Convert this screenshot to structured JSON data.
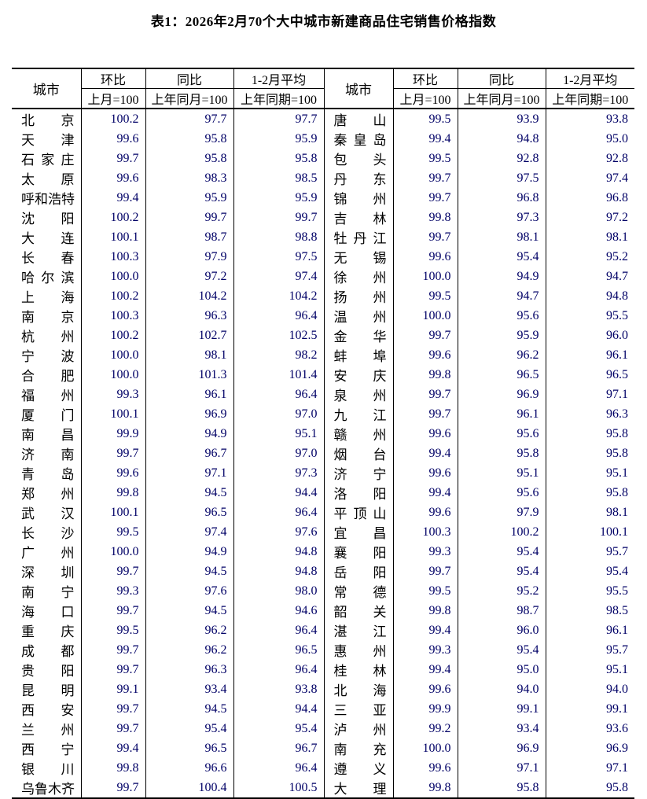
{
  "title": "表1：2026年2月70个大中城市新建商品住宅销售价格指数",
  "colors": {
    "page_background": "#ffffff",
    "border": "#000000",
    "heading_text": "#000000",
    "number_text": "#000066"
  },
  "header": {
    "city_label": "城市",
    "groups": [
      {
        "label": "环比",
        "sub": "上月=100"
      },
      {
        "label": "同比",
        "sub": "上年同月=100"
      },
      {
        "label": "1-2月平均",
        "sub": "上年同期=100"
      }
    ]
  },
  "left_rows": [
    {
      "city": "北京",
      "mom": "100.2",
      "yoy": "97.7",
      "avg": "97.7"
    },
    {
      "city": "天津",
      "mom": "99.6",
      "yoy": "95.8",
      "avg": "95.9"
    },
    {
      "city": "石家庄",
      "mom": "99.7",
      "yoy": "95.8",
      "avg": "95.8"
    },
    {
      "city": "太原",
      "mom": "99.6",
      "yoy": "98.3",
      "avg": "98.5"
    },
    {
      "city": "呼和浩特",
      "mom": "99.4",
      "yoy": "95.9",
      "avg": "95.9"
    },
    {
      "city": "沈阳",
      "mom": "100.2",
      "yoy": "99.7",
      "avg": "99.7"
    },
    {
      "city": "大连",
      "mom": "100.1",
      "yoy": "98.7",
      "avg": "98.8"
    },
    {
      "city": "长春",
      "mom": "100.3",
      "yoy": "97.9",
      "avg": "97.5"
    },
    {
      "city": "哈尔滨",
      "mom": "100.0",
      "yoy": "97.2",
      "avg": "97.4"
    },
    {
      "city": "上海",
      "mom": "100.2",
      "yoy": "104.2",
      "avg": "104.2"
    },
    {
      "city": "南京",
      "mom": "100.3",
      "yoy": "96.3",
      "avg": "96.4"
    },
    {
      "city": "杭州",
      "mom": "100.2",
      "yoy": "102.7",
      "avg": "102.5"
    },
    {
      "city": "宁波",
      "mom": "100.0",
      "yoy": "98.1",
      "avg": "98.2"
    },
    {
      "city": "合肥",
      "mom": "100.0",
      "yoy": "101.3",
      "avg": "101.4"
    },
    {
      "city": "福州",
      "mom": "99.3",
      "yoy": "96.1",
      "avg": "96.4"
    },
    {
      "city": "厦门",
      "mom": "100.1",
      "yoy": "96.9",
      "avg": "97.0"
    },
    {
      "city": "南昌",
      "mom": "99.9",
      "yoy": "94.9",
      "avg": "95.1"
    },
    {
      "city": "济南",
      "mom": "99.7",
      "yoy": "96.7",
      "avg": "97.0"
    },
    {
      "city": "青岛",
      "mom": "99.6",
      "yoy": "97.1",
      "avg": "97.3"
    },
    {
      "city": "郑州",
      "mom": "99.8",
      "yoy": "94.5",
      "avg": "94.4"
    },
    {
      "city": "武汉",
      "mom": "100.1",
      "yoy": "96.5",
      "avg": "96.4"
    },
    {
      "city": "长沙",
      "mom": "99.5",
      "yoy": "97.4",
      "avg": "97.6"
    },
    {
      "city": "广州",
      "mom": "100.0",
      "yoy": "94.9",
      "avg": "94.8"
    },
    {
      "city": "深圳",
      "mom": "99.7",
      "yoy": "94.5",
      "avg": "94.8"
    },
    {
      "city": "南宁",
      "mom": "99.3",
      "yoy": "97.6",
      "avg": "98.0"
    },
    {
      "city": "海口",
      "mom": "99.7",
      "yoy": "94.5",
      "avg": "94.6"
    },
    {
      "city": "重庆",
      "mom": "99.5",
      "yoy": "96.2",
      "avg": "96.4"
    },
    {
      "city": "成都",
      "mom": "99.7",
      "yoy": "96.2",
      "avg": "96.5"
    },
    {
      "city": "贵阳",
      "mom": "99.7",
      "yoy": "96.3",
      "avg": "96.4"
    },
    {
      "city": "昆明",
      "mom": "99.1",
      "yoy": "93.4",
      "avg": "93.8"
    },
    {
      "city": "西安",
      "mom": "99.7",
      "yoy": "94.5",
      "avg": "94.4"
    },
    {
      "city": "兰州",
      "mom": "99.7",
      "yoy": "95.4",
      "avg": "95.4"
    },
    {
      "city": "西宁",
      "mom": "99.4",
      "yoy": "96.5",
      "avg": "96.7"
    },
    {
      "city": "银川",
      "mom": "99.8",
      "yoy": "96.6",
      "avg": "96.4"
    },
    {
      "city": "乌鲁木齐",
      "mom": "99.7",
      "yoy": "100.4",
      "avg": "100.5"
    }
  ],
  "right_rows": [
    {
      "city": "唐山",
      "mom": "99.5",
      "yoy": "93.9",
      "avg": "93.8"
    },
    {
      "city": "秦皇岛",
      "mom": "99.4",
      "yoy": "94.8",
      "avg": "95.0"
    },
    {
      "city": "包头",
      "mom": "99.5",
      "yoy": "92.8",
      "avg": "92.8"
    },
    {
      "city": "丹东",
      "mom": "99.7",
      "yoy": "97.5",
      "avg": "97.4"
    },
    {
      "city": "锦州",
      "mom": "99.7",
      "yoy": "96.8",
      "avg": "96.8"
    },
    {
      "city": "吉林",
      "mom": "99.8",
      "yoy": "97.3",
      "avg": "97.2"
    },
    {
      "city": "牡丹江",
      "mom": "99.7",
      "yoy": "98.1",
      "avg": "98.1"
    },
    {
      "city": "无锡",
      "mom": "99.6",
      "yoy": "95.4",
      "avg": "95.2"
    },
    {
      "city": "徐州",
      "mom": "100.0",
      "yoy": "94.9",
      "avg": "94.7"
    },
    {
      "city": "扬州",
      "mom": "99.5",
      "yoy": "94.7",
      "avg": "94.8"
    },
    {
      "city": "温州",
      "mom": "100.0",
      "yoy": "95.6",
      "avg": "95.5"
    },
    {
      "city": "金华",
      "mom": "99.7",
      "yoy": "95.9",
      "avg": "96.0"
    },
    {
      "city": "蚌埠",
      "mom": "99.6",
      "yoy": "96.2",
      "avg": "96.1"
    },
    {
      "city": "安庆",
      "mom": "99.8",
      "yoy": "96.5",
      "avg": "96.5"
    },
    {
      "city": "泉州",
      "mom": "99.7",
      "yoy": "96.9",
      "avg": "97.1"
    },
    {
      "city": "九江",
      "mom": "99.7",
      "yoy": "96.1",
      "avg": "96.3"
    },
    {
      "city": "赣州",
      "mom": "99.6",
      "yoy": "95.6",
      "avg": "95.8"
    },
    {
      "city": "烟台",
      "mom": "99.4",
      "yoy": "95.8",
      "avg": "95.8"
    },
    {
      "city": "济宁",
      "mom": "99.6",
      "yoy": "95.1",
      "avg": "95.1"
    },
    {
      "city": "洛阳",
      "mom": "99.4",
      "yoy": "95.6",
      "avg": "95.8"
    },
    {
      "city": "平顶山",
      "mom": "99.6",
      "yoy": "97.9",
      "avg": "98.1"
    },
    {
      "city": "宜昌",
      "mom": "100.3",
      "yoy": "100.2",
      "avg": "100.1"
    },
    {
      "city": "襄阳",
      "mom": "99.3",
      "yoy": "95.4",
      "avg": "95.7"
    },
    {
      "city": "岳阳",
      "mom": "99.7",
      "yoy": "95.4",
      "avg": "95.4"
    },
    {
      "city": "常德",
      "mom": "99.5",
      "yoy": "95.2",
      "avg": "95.5"
    },
    {
      "city": "韶关",
      "mom": "99.8",
      "yoy": "98.7",
      "avg": "98.5"
    },
    {
      "city": "湛江",
      "mom": "99.4",
      "yoy": "96.0",
      "avg": "96.1"
    },
    {
      "city": "惠州",
      "mom": "99.3",
      "yoy": "95.4",
      "avg": "95.7"
    },
    {
      "city": "桂林",
      "mom": "99.4",
      "yoy": "95.0",
      "avg": "95.1"
    },
    {
      "city": "北海",
      "mom": "99.6",
      "yoy": "94.0",
      "avg": "94.0"
    },
    {
      "city": "三亚",
      "mom": "99.9",
      "yoy": "99.1",
      "avg": "99.1"
    },
    {
      "city": "泸州",
      "mom": "99.2",
      "yoy": "93.4",
      "avg": "93.6"
    },
    {
      "city": "南充",
      "mom": "100.0",
      "yoy": "96.9",
      "avg": "96.9"
    },
    {
      "city": "遵义",
      "mom": "99.6",
      "yoy": "97.1",
      "avg": "97.1"
    },
    {
      "city": "大理",
      "mom": "99.8",
      "yoy": "95.8",
      "avg": "95.8"
    }
  ]
}
